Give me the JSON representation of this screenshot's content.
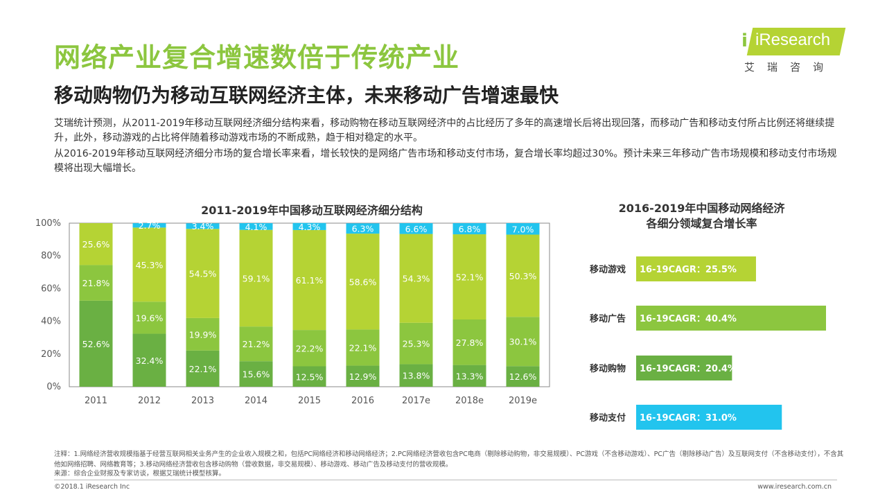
{
  "header": {
    "title": "网络产业复合增速数倍于传统产业",
    "subtitle": "移动购物仍为移动互联网经济主体，未来移动广告增速最快"
  },
  "logo": {
    "name": "iResearch",
    "cn": "艾瑞咨询"
  },
  "paragraphs": [
    "艾瑞统计预测，从2011-2019年移动互联网经济细分结构来看，移动购物在移动互联网经济中的占比经历了多年的高速增长后将出现回落，而移动广告和移动支付所占比例还将继续提升，此外，移动游戏的占比将伴随着移动游戏市场的不断成熟，趋于相对稳定的水平。",
    "从2016-2019年移动互联网经济细分市场的复合增长率来看，增长较快的是网络广告市场和移动支付市场，复合增长率均超过30%。预计未来三年移动广告市场规模和移动支付市场规模将出现大幅增长。"
  ],
  "chart_data": [
    {
      "type": "bar",
      "stacked": true,
      "title": "2011-2019年中国移动互联网经济细分结构",
      "categories": [
        "2011",
        "2012",
        "2013",
        "2014",
        "2015",
        "2016",
        "2017e",
        "2018e",
        "2019e"
      ],
      "ylim": [
        0,
        100
      ],
      "yticks": [
        "0%",
        "20%",
        "40%",
        "60%",
        "80%",
        "100%"
      ],
      "colors": [
        "#6ab043",
        "#8cc63f",
        "#b5d334",
        "#22c4ee"
      ],
      "series": [
        {
          "values": [
            52.6,
            32.4,
            22.1,
            15.6,
            12.5,
            12.9,
            13.8,
            13.3,
            12.6
          ],
          "labels": [
            "52.6%",
            "32.4%",
            "22.1%",
            "15.6%",
            "12.5%",
            "12.9%",
            "13.8%",
            "13.3%",
            "12.6%"
          ]
        },
        {
          "values": [
            21.8,
            19.6,
            19.9,
            21.2,
            22.2,
            22.1,
            25.3,
            27.8,
            30.1
          ],
          "labels": [
            "21.8%",
            "19.6%",
            "19.9%",
            "21.2%",
            "22.2%",
            "22.1%",
            "25.3%",
            "27.8%",
            "30.1%"
          ]
        },
        {
          "values": [
            25.6,
            45.3,
            54.5,
            59.1,
            61.1,
            58.6,
            54.3,
            52.1,
            50.3
          ],
          "labels": [
            "25.6%",
            "45.3%",
            "54.5%",
            "59.1%",
            "61.1%",
            "58.6%",
            "54.3%",
            "52.1%",
            "50.3%"
          ]
        },
        {
          "values": [
            0,
            2.7,
            3.4,
            4.1,
            4.3,
            6.3,
            6.6,
            6.8,
            7.0
          ],
          "labels": [
            "",
            "2.7%",
            "3.4%",
            "4.1%",
            "4.3%",
            "6.3%",
            "6.6%",
            "6.8%",
            "7.0%"
          ]
        }
      ],
      "grid": false,
      "legend": "none"
    },
    {
      "type": "bar",
      "orientation": "horizontal",
      "title": "2016-2019年中国移动网络经济\n各细分领域复合增长率",
      "categories": [
        "移动游戏",
        "移动广告",
        "移动购物",
        "移动支付"
      ],
      "values": [
        25.5,
        40.4,
        20.4,
        31.0
      ],
      "labels": [
        "16-19CAGR：25.5%",
        "16-19CAGR：40.4%",
        "16-19CAGR：20.4%",
        "16-19CAGR：31.0%"
      ],
      "colors": [
        "#b5d334",
        "#8cc63f",
        "#6ab043",
        "#22c4ee"
      ],
      "legend": "none"
    }
  ],
  "notes": {
    "line1": "注释：1.网络经济营收规模指基于经营互联网相关业务产生的企业收入规模之和，包括PC网络经济和移动网络经济；2.PC网络经济营收包含PC电商（剔除移动购物，非交易规模）、PC游戏（不含移动游戏）、PC广告（剔除移动广告）及互联网支付（不含移动支付），不含其他如网络招聘、网络教育等；3.移动网络经济营收包含移动购物（营收数据，非交易规模）、移动游戏、移动广告及移动支付的营收规模。",
    "line2": "来源：综合企业财报及专家访谈，根据艾瑞统计模型核算。"
  },
  "footer": {
    "copyright": "©2018.1 iResearch Inc",
    "site": "www.iresearch.com.cn"
  }
}
